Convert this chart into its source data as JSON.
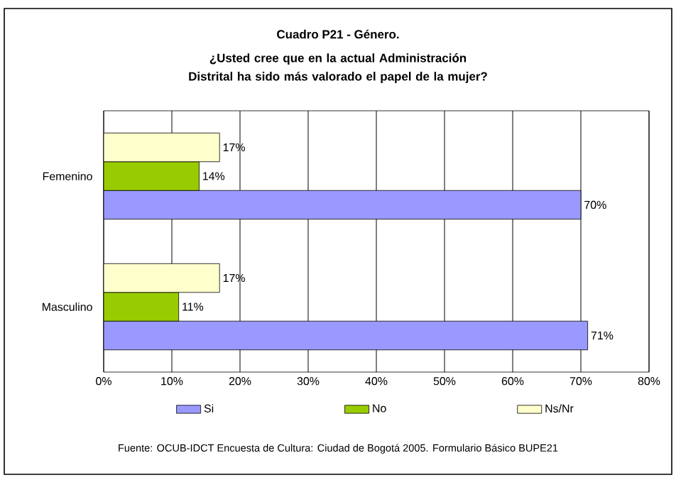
{
  "chart_data": {
    "type": "bar",
    "orientation": "horizontal",
    "title": "Cuadro P21 - Género.",
    "subtitle": "¿Usted cree que en la actual Administración Distrital ha sido más valorado el papel de la mujer?",
    "categories": [
      "Femenino",
      "Masculino"
    ],
    "series": [
      {
        "name": "Si",
        "color": "#9999ff",
        "values": [
          70,
          71
        ],
        "value_labels": [
          "70%",
          "71%"
        ]
      },
      {
        "name": "No",
        "color": "#99cc00",
        "values": [
          14,
          11
        ],
        "value_labels": [
          "14%",
          "11%"
        ]
      },
      {
        "name": "Ns/Nr",
        "color": "#ffffcc",
        "values": [
          17,
          17
        ],
        "value_labels": [
          "17%",
          "17%"
        ]
      }
    ],
    "xlim": [
      0,
      80
    ],
    "xticks": [
      {
        "value": 0,
        "label": "0%"
      },
      {
        "value": 10,
        "label": "10%"
      },
      {
        "value": 20,
        "label": "20%"
      },
      {
        "value": 30,
        "label": "30%"
      },
      {
        "value": 40,
        "label": "40%"
      },
      {
        "value": 50,
        "label": "50%"
      },
      {
        "value": 60,
        "label": "60%"
      },
      {
        "value": 70,
        "label": "70%"
      },
      {
        "value": 80,
        "label": "80%"
      }
    ],
    "grid": "x",
    "legend": "bottom",
    "annotations": [
      "Fuente: OCUB-IDCT Encuesta de Cultura: Ciudad de Bogotá 2005. Formulario Básico BUPE21"
    ]
  }
}
